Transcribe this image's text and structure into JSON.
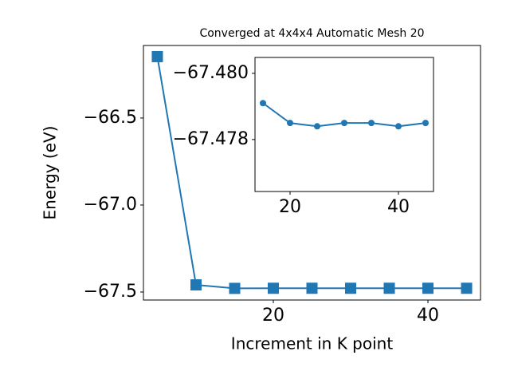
{
  "chart_data": [
    {
      "type": "line",
      "title": "Converged at 4x4x4 Automatic Mesh 20",
      "x_label": "Increment in K point",
      "y_label": "Energy (eV)",
      "x": [
        5,
        10,
        15,
        20,
        25,
        30,
        35,
        40,
        45
      ],
      "series": [
        {
          "color": "#1f77b4",
          "marker": "square",
          "values": [
            -66.147,
            -67.459,
            -67.4791,
            -67.4785,
            -67.4784,
            -67.4785,
            -67.4785,
            -67.4784,
            -67.4785
          ]
        }
      ],
      "xlim": [
        3.2,
        46.8
      ],
      "xticks": [
        20,
        40
      ],
      "ylim": [
        -67.546,
        -66.083
      ],
      "yticks": [
        {
          "value": -67.5,
          "label": "−67.5"
        },
        {
          "value": -67.0,
          "label": "−67.0"
        },
        {
          "value": -66.5,
          "label": "−66.5"
        }
      ]
    },
    {
      "type": "line",
      "x": [
        15,
        20,
        25,
        30,
        35,
        40,
        45
      ],
      "series": [
        {
          "color": "#1f77b4",
          "marker": "circle",
          "values": [
            -67.4791,
            -67.4785,
            -67.4784,
            -67.4785,
            -67.4785,
            -67.4784,
            -67.4785
          ]
        }
      ],
      "xlim": [
        13.53,
        46.47
      ],
      "xticks": [
        20,
        40
      ],
      "ylim": [
        -67.47643,
        -67.48048
      ],
      "yticks": [
        {
          "value": -67.48,
          "label": "−67.480"
        },
        {
          "value": -67.478,
          "label": "−67.478"
        }
      ]
    }
  ]
}
